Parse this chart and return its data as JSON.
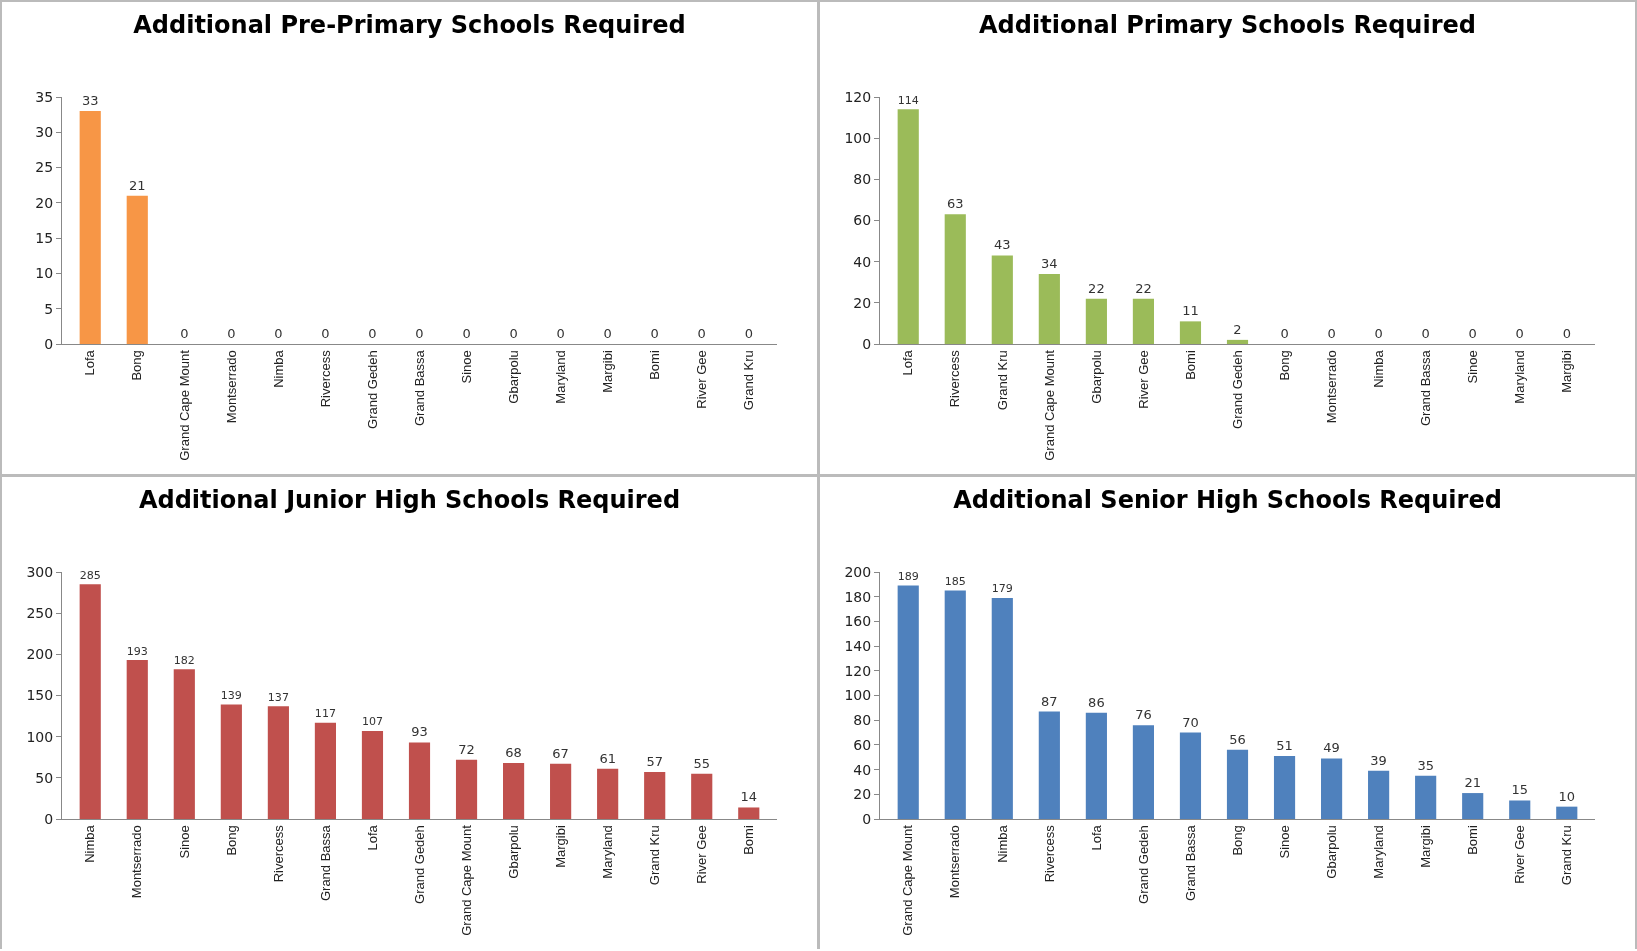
{
  "chart_data": [
    {
      "type": "bar",
      "title": "Additional Pre-Primary Schools Required",
      "categories": [
        "Lofa",
        "Bong",
        "Grand Cape Mount",
        "Montserrado",
        "Nimba",
        "Rivercess",
        "Grand Gedeh",
        "Grand Bassa",
        "Sinoe",
        "Gbarpolu",
        "Maryland",
        "Margibi",
        "Bomi",
        "River Gee",
        "Grand Kru"
      ],
      "values": [
        33,
        21,
        0,
        0,
        0,
        0,
        0,
        0,
        0,
        0,
        0,
        0,
        0,
        0,
        0
      ],
      "color": "#f79646",
      "ylim": [
        0,
        35
      ],
      "yticks": [
        0,
        5,
        10,
        15,
        20,
        25,
        30,
        35
      ],
      "data_labels": true
    },
    {
      "type": "bar",
      "title": "Additional Primary Schools Required",
      "categories": [
        "Lofa",
        "Rivercess",
        "Grand Kru",
        "Grand Cape Mount",
        "Gbarpolu",
        "River Gee",
        "Bomi",
        "Grand Gedeh",
        "Bong",
        "Montserrado",
        "Nimba",
        "Grand Bassa",
        "Sinoe",
        "Maryland",
        "Margibi"
      ],
      "values": [
        114,
        63,
        43,
        34,
        22,
        22,
        11,
        2,
        0,
        0,
        0,
        0,
        0,
        0,
        0
      ],
      "color": "#9bbb59",
      "ylim": [
        0,
        120
      ],
      "yticks": [
        0,
        20,
        40,
        60,
        80,
        100,
        120
      ],
      "data_labels": true
    },
    {
      "type": "bar",
      "title": "Additional Junior High Schools Required",
      "categories": [
        "Nimba",
        "Montserrado",
        "Sinoe",
        "Bong",
        "Rivercess",
        "Grand Bassa",
        "Lofa",
        "Grand Gedeh",
        "Grand Cape Mount",
        "Gbarpolu",
        "Margibi",
        "Maryland",
        "Grand Kru",
        "River Gee",
        "Bomi"
      ],
      "values": [
        285,
        193,
        182,
        139,
        137,
        117,
        107,
        93,
        72,
        68,
        67,
        61,
        57,
        55,
        14
      ],
      "color": "#c0504d",
      "ylim": [
        0,
        300
      ],
      "yticks": [
        0,
        50,
        100,
        150,
        200,
        250,
        300
      ],
      "data_labels": true
    },
    {
      "type": "bar",
      "title": "Additional Senior High Schools Required",
      "categories": [
        "Grand Cape Mount",
        "Montserrado",
        "Nimba",
        "Rivercess",
        "Lofa",
        "Grand Gedeh",
        "Grand Bassa",
        "Bong",
        "Sinoe",
        "Gbarpolu",
        "Maryland",
        "Margibi",
        "Bomi",
        "River Gee",
        "Grand Kru"
      ],
      "values": [
        189,
        185,
        179,
        87,
        86,
        76,
        70,
        56,
        51,
        49,
        39,
        35,
        21,
        15,
        10
      ],
      "color": "#4f81bd",
      "ylim": [
        0,
        200
      ],
      "yticks": [
        0,
        20,
        40,
        60,
        80,
        100,
        120,
        140,
        160,
        180,
        200
      ],
      "data_labels": true
    }
  ]
}
